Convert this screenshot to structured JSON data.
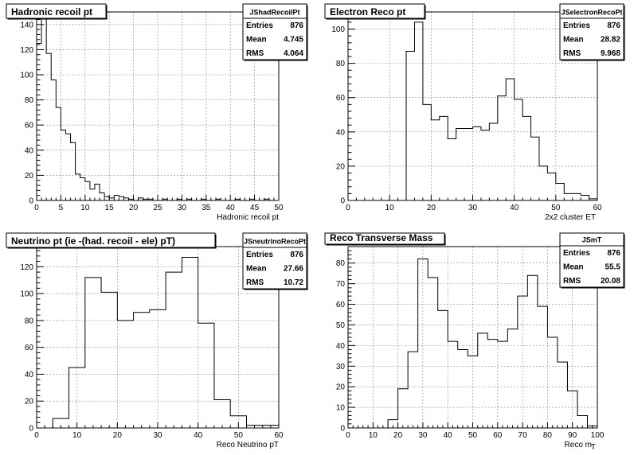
{
  "chart_data": [
    {
      "type": "bar",
      "title": "Hadronic recoil pt",
      "xlabel": "Hadronic recoil pt",
      "ylabel": "",
      "xlim": [
        0,
        50
      ],
      "ylim": [
        0,
        150
      ],
      "xticks": [
        0,
        5,
        10,
        15,
        20,
        25,
        30,
        35,
        40,
        45,
        50
      ],
      "yticks": [
        0,
        20,
        40,
        60,
        80,
        100,
        120,
        140
      ],
      "grid": true,
      "stats": {
        "name": "JShadRecoilPt",
        "Entries": "876",
        "Mean": "4.745",
        "RMS": "4.064"
      },
      "bin_width": 1,
      "x0": 0,
      "values": [
        125,
        146,
        117,
        96,
        74,
        56,
        53,
        46,
        21,
        18,
        15,
        9,
        13,
        6,
        3,
        2,
        4,
        3,
        2,
        1,
        0,
        2,
        1,
        1,
        0,
        0,
        1,
        0,
        0,
        1,
        0,
        1,
        0,
        0,
        1,
        0,
        0,
        1,
        0,
        0,
        0,
        1,
        0,
        0,
        1,
        0,
        0,
        1,
        0,
        0
      ]
    },
    {
      "type": "bar",
      "title": "Electron Reco pt",
      "xlabel": "2x2 cluster ET",
      "ylabel": "",
      "xlim": [
        0,
        60
      ],
      "ylim": [
        0,
        110
      ],
      "xticks": [
        0,
        10,
        20,
        30,
        40,
        50,
        60
      ],
      "yticks": [
        0,
        20,
        40,
        60,
        80,
        100
      ],
      "grid": true,
      "stats": {
        "name": "JSelectronRecoPt",
        "Entries": "876",
        "Mean": "28.82",
        "RMS": "9.968"
      },
      "bin_width": 2,
      "x0": 14,
      "values": [
        87,
        104,
        56,
        47,
        49,
        36,
        42,
        42,
        43,
        41,
        45,
        61,
        71,
        59,
        49,
        37,
        20,
        16,
        10,
        4,
        4,
        3,
        1
      ]
    },
    {
      "type": "bar",
      "title": "Neutrino pt (ie -(had. recoil - ele) pT)",
      "xlabel": "Reco Neutrino pT",
      "ylabel": "",
      "xlim": [
        0,
        60
      ],
      "ylim": [
        0,
        135
      ],
      "xticks": [
        0,
        10,
        20,
        30,
        40,
        50,
        60
      ],
      "yticks": [
        0,
        20,
        40,
        60,
        80,
        100,
        120
      ],
      "grid": true,
      "stats": {
        "name": "JSneutrinoRecoPt",
        "Entries": "876",
        "Mean": "27.66",
        "RMS": "10.72"
      },
      "bin_width": 4,
      "x0": 4,
      "values": [
        7,
        45,
        112,
        101,
        80,
        86,
        88,
        116,
        127,
        78,
        21,
        9,
        2,
        2
      ]
    },
    {
      "type": "bar",
      "title": "Reco Transverse Mass",
      "xlabel": "Reco m",
      "xlabel_sub": "T",
      "ylabel": "",
      "xlim": [
        0,
        100
      ],
      "ylim": [
        0,
        88
      ],
      "xticks": [
        0,
        10,
        20,
        30,
        40,
        50,
        60,
        70,
        80,
        90,
        100
      ],
      "yticks": [
        0,
        10,
        20,
        30,
        40,
        50,
        60,
        70,
        80
      ],
      "grid": true,
      "stats": {
        "name": "JSmT",
        "Entries": "876",
        "Mean": "55.5",
        "RMS": "20.08"
      },
      "bin_width": 4,
      "x0": 16,
      "values": [
        4,
        19,
        37,
        82,
        73,
        57,
        42,
        38,
        35,
        46,
        43,
        42,
        48,
        64,
        74,
        59,
        44,
        32,
        18,
        6,
        1
      ]
    }
  ]
}
